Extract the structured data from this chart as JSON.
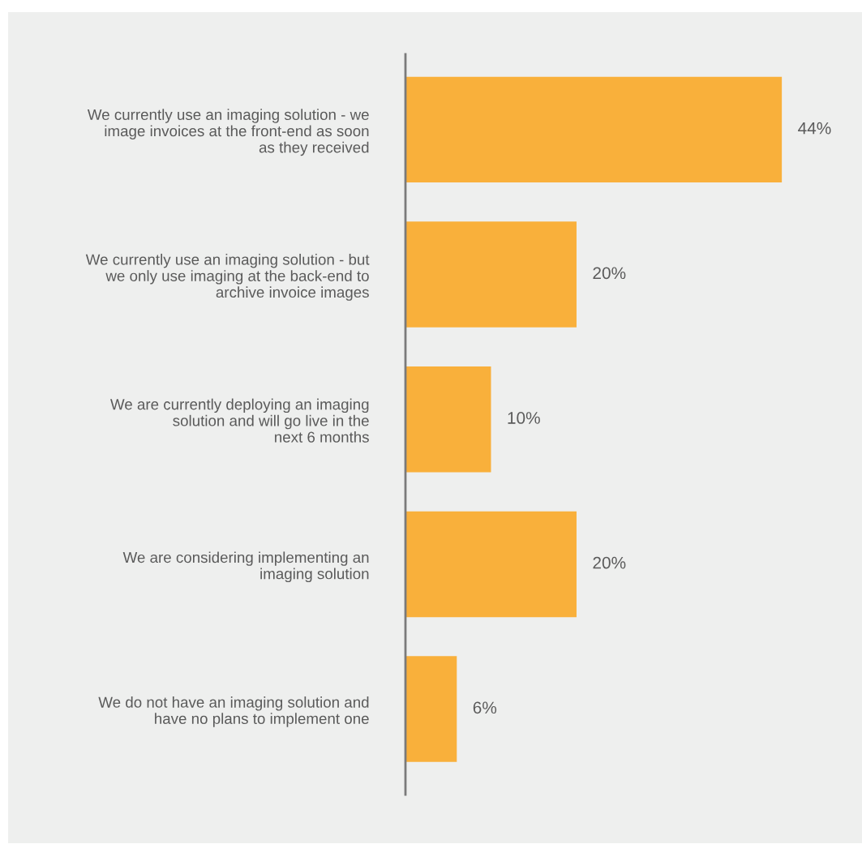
{
  "chart_data": {
    "type": "bar",
    "orientation": "horizontal",
    "categories": [
      "We currently use an imaging solution - we\nimage invoices at the front-end as soon\nas they received",
      "We currently use an imaging solution - but\nwe only use imaging at the back-end to\narchive invoice images",
      "We are currently deploying an imaging\nsolution and will go live in the\nnext 6 months",
      "We are considering implementing an\nimaging solution",
      "We do not have an imaging solution and\nhave no plans to implement one"
    ],
    "values": [
      44,
      20,
      10,
      20,
      6
    ],
    "value_labels": [
      "44%",
      "20%",
      "10%",
      "20%",
      "6%"
    ],
    "color": "#f9b03b",
    "grid": false,
    "legend": false
  }
}
